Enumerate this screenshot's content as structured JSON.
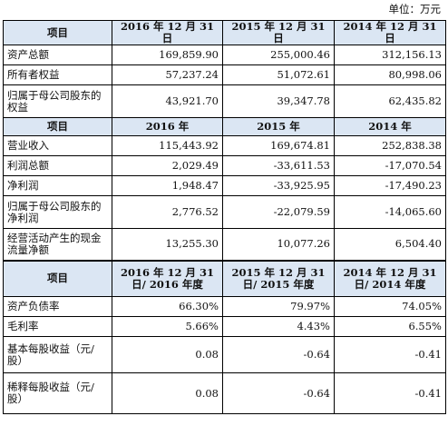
{
  "unit_label": "单位：万元",
  "section1": {
    "header": [
      "项目",
      "2016 年 12 月 31 日",
      "2015 年 12 月 31 日",
      "2014 年 12 月 31 日"
    ],
    "rows": [
      {
        "label": "资产总额",
        "values": [
          "169,859.90",
          "255,000.46",
          "312,156.13"
        ]
      },
      {
        "label": "所有者权益",
        "values": [
          "57,237.24",
          "51,072.61",
          "80,998.06"
        ]
      },
      {
        "label": "归属于母公司股东的权益",
        "values": [
          "43,921.70",
          "39,347.78",
          "62,435.82"
        ]
      }
    ]
  },
  "section2": {
    "header": [
      "项目",
      "2016 年",
      "2015 年",
      "2014 年"
    ],
    "rows": [
      {
        "label": "营业收入",
        "values": [
          "115,443.92",
          "169,674.81",
          "252,838.38"
        ]
      },
      {
        "label": "利润总额",
        "values": [
          "2,029.49",
          "-33,611.53",
          "-17,070.54"
        ]
      },
      {
        "label": "净利润",
        "values": [
          "1,948.47",
          "-33,925.95",
          "-17,490.23"
        ]
      },
      {
        "label": "归属于母公司股东的净利润",
        "values": [
          "2,776.52",
          "-22,079.59",
          "-14,065.60"
        ]
      },
      {
        "label": "经营活动产生的现金流量净额",
        "values": [
          "13,255.30",
          "10,077.26",
          "6,504.40"
        ]
      }
    ]
  },
  "section3": {
    "header": [
      "项目",
      "2016 年 12 月 31 日/ 2016 年度",
      "2015 年 12 月 31 日/ 2015 年度",
      "2014 年 12 月 31 日/ 2014 年度"
    ],
    "rows": [
      {
        "label": "资产负债率",
        "values": [
          "66.30%",
          "79.97%",
          "74.05%"
        ]
      },
      {
        "label": "毛利率",
        "values": [
          "5.66%",
          "4.43%",
          "6.55%"
        ]
      },
      {
        "label": "基本每股收益（元/股）",
        "values": [
          "0.08",
          "-0.64",
          "-0.41"
        ]
      },
      {
        "label": "稀释每股收益（元/股）",
        "values": [
          "0.08",
          "-0.64",
          "-0.41"
        ]
      }
    ]
  }
}
